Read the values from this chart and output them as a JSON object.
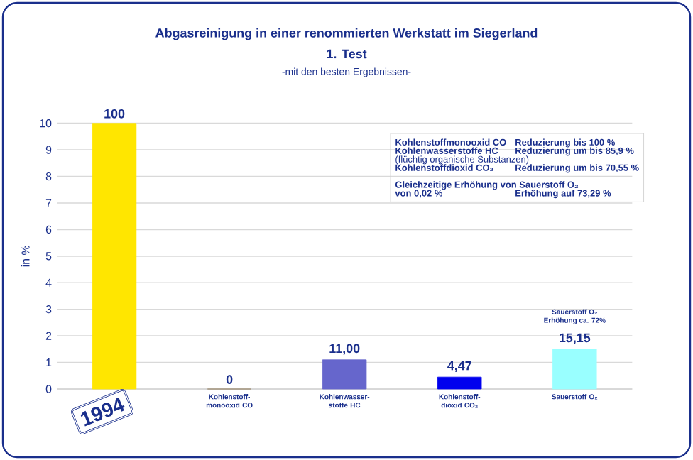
{
  "chart_data": {
    "type": "bar",
    "title": "Abgasreinigung in einer renommierten Werkstatt im Siegerland",
    "subtitle": "1. Test",
    "ylabel": "in %",
    "categories": [
      null,
      "Kohlenstoff-monooxid CO",
      "Kohlenwasser-stoffe HC",
      "Kohlenstoff-dioxid CO₂",
      "Sauerstoff O₂"
    ],
    "values": [
      10,
      0,
      1.1,
      0.45,
      1.5
    ],
    "colors": [
      "#ffe600",
      "#9c8a6e",
      "#6666cc",
      "#0000ee",
      "#99ffff"
    ],
    "ylim": [
      0,
      10
    ],
    "yticks": [
      0,
      1,
      2,
      3,
      4,
      5,
      6,
      7,
      8,
      9,
      10
    ],
    "grid": "y",
    "annotations": [
      "-mit den besten Ergebnissen-",
      "Kohlenstoffmonooxid CO",
      "Reduzierung  bis 100 %",
      "Kohlenwasserstoffe HC",
      "Reduzierung um bis 85,9 %",
      "(flüchtig organische Substanzen)",
      "Kohlenstoffdioxid CO₂",
      "Reduzierung um bis 70,55 %",
      "Gleichzeitige Erhöhung von Sauerstoff O₂",
      "von 0,02 %",
      "Erhöhung auf 73,29 %",
      "Sauerstoff O₂",
      "Erhöhung ca. 72%",
      "1994",
      {
        "text": "100",
        "y": 10
      },
      {
        "text": "0",
        "x": "Kohlenstoff-monooxid CO",
        "y": 0
      },
      {
        "text": "11,00",
        "x": "Kohlenwasser-stoffe HC",
        "y": 1.1
      },
      {
        "text": "4,47",
        "x": "Kohlenstoff-dioxid CO₂",
        "y": 0.45
      },
      {
        "text": "15,15",
        "x": "Sauerstoff O₂",
        "y": 1.5
      }
    ]
  }
}
